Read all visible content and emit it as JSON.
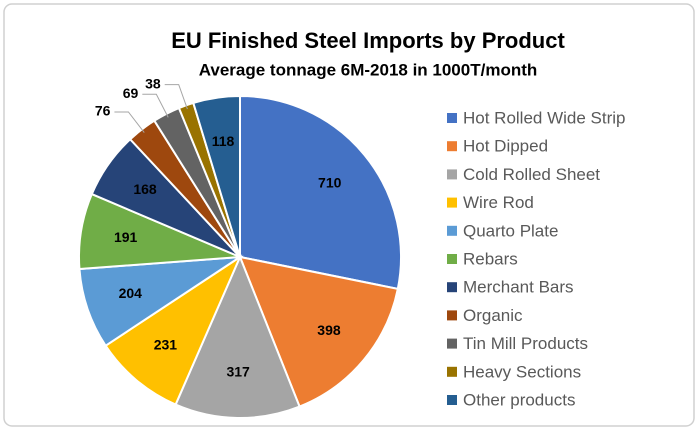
{
  "chart_data": {
    "type": "pie",
    "title": "EU Finished Steel Imports by Product",
    "subtitle": "Average tonnage 6M-2018 in 1000T/month",
    "categories": [
      "Hot Rolled Wide Strip",
      "Hot Dipped",
      "Cold Rolled Sheet",
      "Wire Rod",
      "Quarto Plate",
      "Rebars",
      "Merchant Bars",
      "Organic",
      "Tin Mill Products",
      "Heavy Sections",
      "Other products"
    ],
    "values": [
      710,
      398,
      317,
      231,
      204,
      191,
      168,
      76,
      69,
      38,
      118
    ],
    "colors": [
      "#4472c4",
      "#ed7d31",
      "#a5a5a5",
      "#ffc000",
      "#5b9bd5",
      "#70ad47",
      "#264478",
      "#9e480e",
      "#636363",
      "#997300",
      "#255e91"
    ],
    "legend": "right"
  }
}
